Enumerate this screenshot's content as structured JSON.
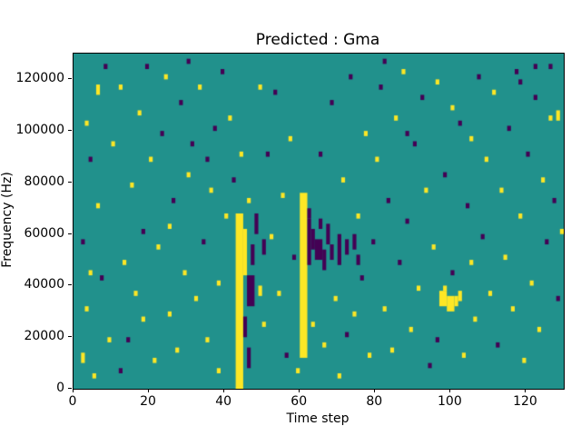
{
  "chart_data": {
    "type": "heatmap",
    "title": "Predicted : Gma",
    "xlabel": "Time step",
    "ylabel": "Frequency (Hz)",
    "xlim": [
      0,
      130
    ],
    "ylim": [
      0,
      130000
    ],
    "xticks": [
      0,
      20,
      40,
      60,
      80,
      100,
      120
    ],
    "yticks": [
      0,
      20000,
      40000,
      60000,
      80000,
      100000,
      120000
    ],
    "freq_bin_size": 2000,
    "grid": false,
    "legend": "none",
    "colors": {
      "mid": "#21918c",
      "high": "#fde725",
      "low": "#440154"
    },
    "value_legend": {
      "h": "high (yellow)",
      "l": "low (purple)",
      "background": "mid (teal)"
    },
    "runs_format": "[time_step, freq_bin_start, freq_bin_end, value_code, width_in_time_steps] with freq bins of 2000 Hz",
    "runs": [
      [
        43,
        0,
        33,
        "h",
        2
      ],
      [
        60,
        6,
        37,
        "h",
        2
      ],
      [
        45,
        22,
        30,
        "h",
        1
      ],
      [
        49,
        18,
        19,
        "h",
        1
      ],
      [
        97,
        16,
        18,
        "h",
        2
      ],
      [
        99,
        15,
        17,
        "h",
        2
      ],
      [
        101,
        16,
        17,
        "h",
        1
      ],
      [
        102,
        17,
        18,
        "h",
        1
      ],
      [
        98,
        19,
        19,
        "h",
        1
      ],
      [
        45,
        10,
        13,
        "l",
        1
      ],
      [
        46,
        16,
        21,
        "l",
        2
      ],
      [
        46,
        4,
        7,
        "l",
        1
      ],
      [
        47,
        24,
        27,
        "l",
        1
      ],
      [
        48,
        30,
        33,
        "l",
        1
      ],
      [
        50,
        26,
        28,
        "l",
        1
      ],
      [
        62,
        24,
        32,
        "l",
        1
      ],
      [
        63,
        27,
        30,
        "l",
        1
      ],
      [
        64,
        25,
        28,
        "l",
        2
      ],
      [
        66,
        23,
        26,
        "l",
        1
      ],
      [
        67,
        28,
        31,
        "l",
        1
      ],
      [
        68,
        25,
        27,
        "l",
        1
      ],
      [
        70,
        24,
        29,
        "l",
        1
      ],
      [
        72,
        26,
        28,
        "l",
        1
      ],
      [
        74,
        27,
        29,
        "l",
        1
      ],
      [
        75,
        24,
        25,
        "l",
        1
      ],
      [
        62,
        33,
        34,
        "l",
        1
      ],
      [
        65,
        31,
        32,
        "l",
        1
      ],
      [
        2,
        5,
        6,
        "h",
        1
      ],
      [
        3,
        15,
        15,
        "h",
        1
      ],
      [
        4,
        22,
        22,
        "h",
        1
      ],
      [
        5,
        2,
        2,
        "h",
        1
      ],
      [
        3,
        51,
        51,
        "h",
        1
      ],
      [
        6,
        57,
        58,
        "h",
        1
      ],
      [
        8,
        62,
        62,
        "l",
        1
      ],
      [
        4,
        44,
        44,
        "l",
        1
      ],
      [
        7,
        21,
        21,
        "l",
        1
      ],
      [
        9,
        9,
        9,
        "h",
        1
      ],
      [
        6,
        35,
        35,
        "h",
        1
      ],
      [
        2,
        28,
        28,
        "l",
        1
      ],
      [
        10,
        47,
        47,
        "h",
        1
      ],
      [
        12,
        58,
        58,
        "h",
        1
      ],
      [
        13,
        24,
        24,
        "h",
        1
      ],
      [
        14,
        9,
        9,
        "l",
        1
      ],
      [
        15,
        39,
        39,
        "h",
        1
      ],
      [
        16,
        18,
        18,
        "h",
        1
      ],
      [
        17,
        53,
        53,
        "h",
        1
      ],
      [
        18,
        30,
        30,
        "l",
        1
      ],
      [
        19,
        62,
        62,
        "l",
        1
      ],
      [
        20,
        44,
        44,
        "h",
        1
      ],
      [
        12,
        3,
        3,
        "l",
        1
      ],
      [
        18,
        13,
        13,
        "h",
        1
      ],
      [
        22,
        27,
        27,
        "h",
        1
      ],
      [
        23,
        49,
        49,
        "l",
        1
      ],
      [
        24,
        60,
        60,
        "h",
        1
      ],
      [
        25,
        14,
        14,
        "h",
        1
      ],
      [
        26,
        36,
        36,
        "l",
        1
      ],
      [
        27,
        7,
        7,
        "h",
        1
      ],
      [
        28,
        55,
        55,
        "l",
        1
      ],
      [
        29,
        22,
        22,
        "h",
        1
      ],
      [
        30,
        41,
        41,
        "h",
        1
      ],
      [
        25,
        31,
        31,
        "h",
        1
      ],
      [
        21,
        5,
        5,
        "h",
        1
      ],
      [
        30,
        63,
        63,
        "l",
        1
      ],
      [
        31,
        47,
        47,
        "l",
        1
      ],
      [
        32,
        17,
        17,
        "h",
        1
      ],
      [
        33,
        58,
        58,
        "h",
        1
      ],
      [
        34,
        28,
        28,
        "l",
        1
      ],
      [
        35,
        9,
        9,
        "h",
        1
      ],
      [
        36,
        38,
        38,
        "h",
        1
      ],
      [
        37,
        50,
        50,
        "l",
        1
      ],
      [
        38,
        20,
        20,
        "h",
        1
      ],
      [
        39,
        61,
        61,
        "l",
        1
      ],
      [
        40,
        33,
        33,
        "h",
        1
      ],
      [
        35,
        44,
        44,
        "l",
        1
      ],
      [
        38,
        3,
        3,
        "h",
        1
      ],
      [
        41,
        52,
        52,
        "h",
        1
      ],
      [
        42,
        40,
        40,
        "l",
        1
      ],
      [
        50,
        12,
        12,
        "h",
        1
      ],
      [
        51,
        45,
        45,
        "l",
        1
      ],
      [
        52,
        29,
        29,
        "h",
        1
      ],
      [
        53,
        57,
        57,
        "l",
        1
      ],
      [
        54,
        18,
        18,
        "h",
        1
      ],
      [
        55,
        37,
        37,
        "h",
        1
      ],
      [
        56,
        6,
        6,
        "l",
        1
      ],
      [
        57,
        48,
        48,
        "h",
        1
      ],
      [
        58,
        25,
        25,
        "l",
        1
      ],
      [
        49,
        58,
        58,
        "h",
        1
      ],
      [
        46,
        36,
        36,
        "h",
        1
      ],
      [
        44,
        45,
        45,
        "h",
        1
      ],
      [
        59,
        3,
        3,
        "h",
        1
      ],
      [
        63,
        12,
        12,
        "h",
        1
      ],
      [
        65,
        45,
        45,
        "l",
        1
      ],
      [
        66,
        8,
        8,
        "h",
        1
      ],
      [
        68,
        55,
        55,
        "l",
        1
      ],
      [
        69,
        17,
        17,
        "h",
        1
      ],
      [
        71,
        40,
        40,
        "h",
        1
      ],
      [
        72,
        10,
        10,
        "l",
        1
      ],
      [
        73,
        60,
        60,
        "l",
        1
      ],
      [
        75,
        33,
        33,
        "h",
        1
      ],
      [
        76,
        21,
        21,
        "l",
        1
      ],
      [
        77,
        49,
        49,
        "h",
        1
      ],
      [
        78,
        6,
        6,
        "h",
        1
      ],
      [
        70,
        2,
        2,
        "h",
        1
      ],
      [
        74,
        14,
        14,
        "h",
        1
      ],
      [
        79,
        28,
        28,
        "l",
        1
      ],
      [
        80,
        44,
        44,
        "h",
        1
      ],
      [
        81,
        58,
        58,
        "l",
        1
      ],
      [
        82,
        15,
        15,
        "h",
        1
      ],
      [
        83,
        36,
        36,
        "l",
        1
      ],
      [
        84,
        7,
        7,
        "h",
        1
      ],
      [
        85,
        52,
        52,
        "h",
        1
      ],
      [
        86,
        24,
        24,
        "l",
        1
      ],
      [
        87,
        61,
        61,
        "h",
        1
      ],
      [
        88,
        32,
        32,
        "l",
        1
      ],
      [
        89,
        11,
        11,
        "h",
        1
      ],
      [
        90,
        47,
        47,
        "l",
        1
      ],
      [
        91,
        19,
        19,
        "h",
        1
      ],
      [
        92,
        56,
        56,
        "l",
        1
      ],
      [
        93,
        38,
        38,
        "h",
        1
      ],
      [
        94,
        4,
        4,
        "l",
        1
      ],
      [
        95,
        27,
        27,
        "h",
        1
      ],
      [
        82,
        63,
        63,
        "l",
        1
      ],
      [
        88,
        49,
        49,
        "l",
        1
      ],
      [
        96,
        9,
        9,
        "l",
        1
      ],
      [
        96,
        59,
        59,
        "h",
        1
      ],
      [
        98,
        41,
        41,
        "l",
        1
      ],
      [
        100,
        22,
        22,
        "l",
        1
      ],
      [
        100,
        54,
        54,
        "h",
        1
      ],
      [
        103,
        6,
        6,
        "h",
        1
      ],
      [
        104,
        35,
        35,
        "l",
        1
      ],
      [
        105,
        48,
        48,
        "h",
        1
      ],
      [
        106,
        13,
        13,
        "h",
        1
      ],
      [
        107,
        60,
        60,
        "l",
        1
      ],
      [
        108,
        29,
        29,
        "l",
        1
      ],
      [
        109,
        44,
        44,
        "h",
        1
      ],
      [
        110,
        18,
        18,
        "h",
        1
      ],
      [
        102,
        51,
        51,
        "l",
        1
      ],
      [
        105,
        24,
        24,
        "h",
        1
      ],
      [
        111,
        57,
        57,
        "h",
        1
      ],
      [
        112,
        8,
        8,
        "l",
        1
      ],
      [
        113,
        38,
        38,
        "h",
        1
      ],
      [
        114,
        25,
        25,
        "h",
        1
      ],
      [
        115,
        50,
        50,
        "l",
        1
      ],
      [
        116,
        15,
        15,
        "h",
        1
      ],
      [
        117,
        61,
        61,
        "l",
        1
      ],
      [
        118,
        33,
        33,
        "h",
        1
      ],
      [
        119,
        5,
        5,
        "h",
        1
      ],
      [
        120,
        45,
        45,
        "l",
        1
      ],
      [
        121,
        20,
        20,
        "h",
        1
      ],
      [
        122,
        56,
        56,
        "l",
        1
      ],
      [
        123,
        11,
        11,
        "h",
        1
      ],
      [
        124,
        40,
        40,
        "h",
        1
      ],
      [
        125,
        28,
        28,
        "l",
        1
      ],
      [
        126,
        52,
        52,
        "h",
        1
      ],
      [
        126,
        62,
        62,
        "l",
        1
      ],
      [
        127,
        36,
        36,
        "l",
        1
      ],
      [
        128,
        52,
        53,
        "h",
        1
      ],
      [
        128,
        17,
        17,
        "l",
        1
      ],
      [
        129,
        30,
        30,
        "h",
        1
      ],
      [
        122,
        62,
        62,
        "l",
        1
      ],
      [
        118,
        59,
        59,
        "l",
        1
      ]
    ]
  }
}
